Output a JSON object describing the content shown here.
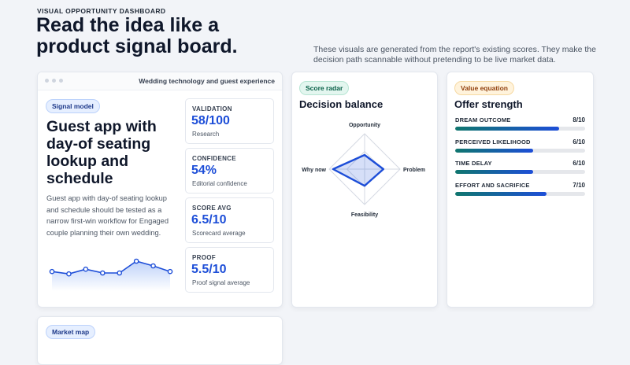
{
  "header": {
    "eyebrow": "VISUAL OPPORTUNITY DASHBOARD",
    "title": "Read the idea like a product signal board.",
    "description": "These visuals are generated from the report's existing scores. They make the decision path scannable without pretending to be live market data."
  },
  "signal_card": {
    "window_title": "Wedding technology and guest experience",
    "pill": "Signal model",
    "headline": "Guest app with day-of seating lookup and schedule",
    "body": "Guest app with day-of seating lookup and schedule should be tested as a narrow first-win workflow for Engaged couple planning their own wedding.",
    "sparkline": {
      "type": "line",
      "values": [
        2.8,
        2.3,
        3.3,
        2.5,
        2.5,
        5,
        4,
        2.8
      ],
      "ylim": [
        0,
        10
      ],
      "color": "#1d4ed8"
    },
    "metrics": [
      {
        "label": "VALIDATION",
        "value": "58/100",
        "sub": "Research"
      },
      {
        "label": "CONFIDENCE",
        "value": "54%",
        "sub": "Editorial confidence"
      },
      {
        "label": "SCORE AVG",
        "value": "6.5/10",
        "sub": "Scorecard average"
      },
      {
        "label": "PROOF",
        "value": "5.5/10",
        "sub": "Proof signal average"
      }
    ]
  },
  "radar_card": {
    "pill": "Score radar",
    "title": "Decision balance",
    "chart_data": {
      "type": "radar",
      "categories": [
        "Opportunity",
        "Problem",
        "Feasibility",
        "Why now"
      ],
      "values": [
        4,
        5.3,
        4.7,
        8.9
      ],
      "rlim": [
        0,
        10
      ],
      "rticks": [
        5,
        10
      ],
      "color": "#1d4ed8"
    }
  },
  "value_card": {
    "pill": "Value equation",
    "title": "Offer strength",
    "chart_data": {
      "type": "hbar",
      "categories": [
        "DREAM OUTCOME",
        "PERCEIVED LIKELIHOOD",
        "TIME DELAY",
        "EFFORT AND SACRIFICE"
      ],
      "values": [
        8,
        6,
        6,
        7
      ],
      "value_labels": [
        "8/10",
        "6/10",
        "6/10",
        "7/10"
      ],
      "xlim": [
        0,
        10
      ]
    }
  },
  "market_card": {
    "pill": "Market map"
  }
}
